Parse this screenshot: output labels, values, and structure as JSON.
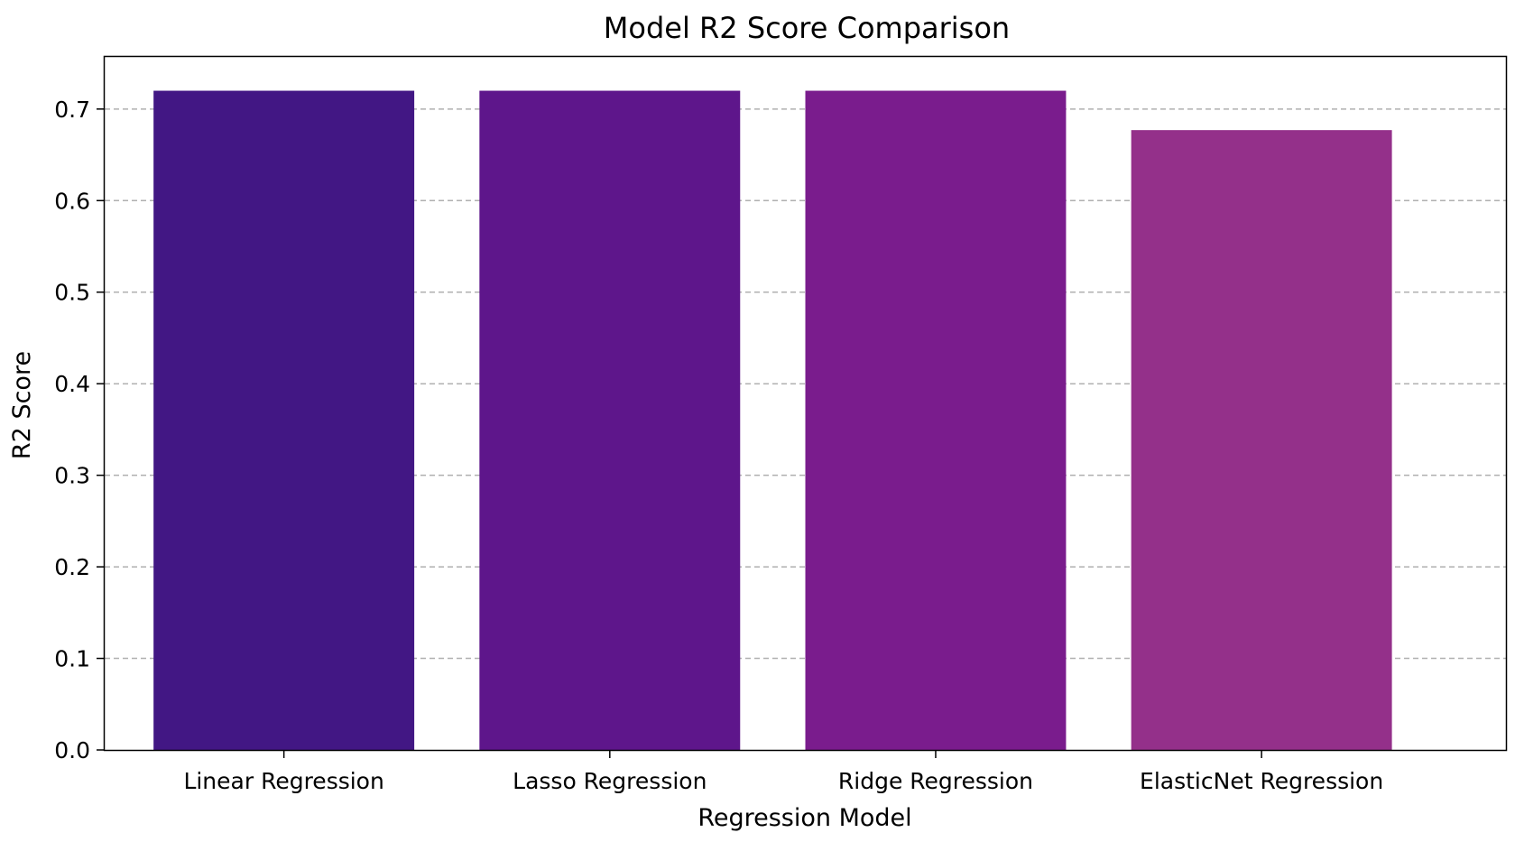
{
  "chart_data": {
    "type": "bar",
    "title": "Model R2 Score Comparison",
    "xlabel": "Regression Model",
    "ylabel": "R2 Score",
    "categories": [
      "Linear Regression",
      "Lasso Regression",
      "Ridge Regression",
      "ElasticNet Regression"
    ],
    "values": [
      0.72,
      0.72,
      0.72,
      0.677
    ],
    "bar_colors": [
      "#421784",
      "#5e168b",
      "#7a1c8d",
      "#94308a"
    ],
    "ylim": [
      0,
      0.757
    ],
    "yticks": [
      "0.0",
      "0.1",
      "0.2",
      "0.3",
      "0.4",
      "0.5",
      "0.6",
      "0.7"
    ],
    "grid": "y-axis dashed",
    "legend": "none"
  }
}
